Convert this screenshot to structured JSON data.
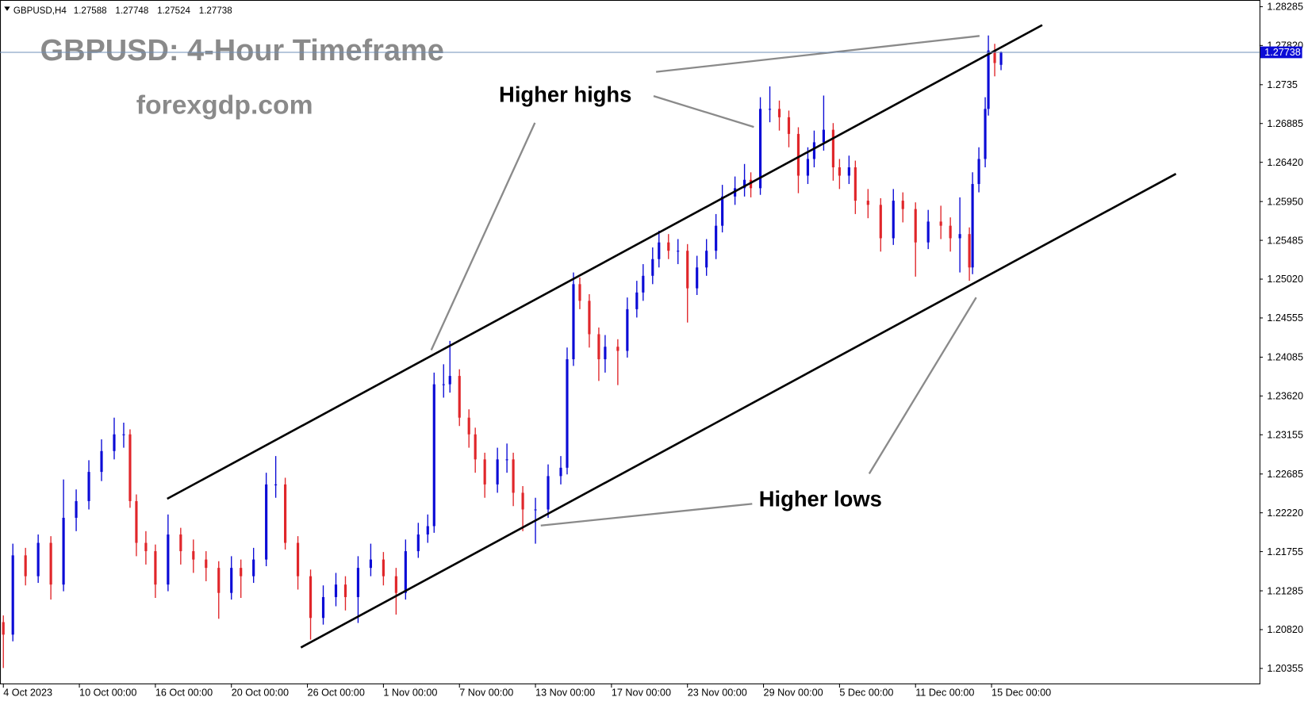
{
  "chart_data": {
    "type": "candlestick",
    "symbol": "GBPUSD,H4",
    "title": "GBPUSD: 4-Hour Timeframe",
    "subtitle": "forexgdp.com",
    "annotations": [
      "Higher highs",
      "Higher lows"
    ],
    "up_color": "#0b0bd6",
    "down_color": "#e0262a",
    "price_line_color": "#6f8fb8",
    "x": [
      0,
      3,
      7,
      11,
      15,
      19,
      23,
      27,
      31,
      35,
      38,
      40,
      42,
      45,
      48,
      52,
      56,
      60,
      64,
      68,
      72,
      75,
      79,
      83,
      86,
      89,
      93,
      97,
      101,
      105,
      108,
      112,
      116,
      120,
      124,
      127,
      131,
      134,
      136,
      139,
      141,
      144,
      147,
      149,
      152,
      156,
      159,
      161,
      164,
      168,
      172,
      176,
      178,
      180,
      182,
      185,
      188,
      190,
      194,
      197,
      200,
      202,
      205,
      207,
      210,
      213,
      216,
      219,
      222,
      225,
      227,
      231,
      234,
      236,
      239,
      242,
      245,
      248,
      251,
      254,
      256,
      259,
      262,
      264,
      267,
      269,
      273,
      277,
      281,
      284,
      288,
      292,
      296,
      299,
      302,
      305,
      306,
      308,
      310,
      311,
      313,
      315
    ],
    "open": [
      1.2091,
      1.2076,
      1.2171,
      1.2146,
      1.2186,
      1.2136,
      1.2216,
      1.2236,
      1.2271,
      1.2296,
      1.2316,
      1.2316,
      1.2236,
      1.2186,
      1.2176,
      1.2136,
      1.2196,
      1.2176,
      1.2166,
      1.2156,
      1.2126,
      1.2156,
      1.2146,
      1.2166,
      1.2256,
      1.2256,
      1.2186,
      1.2146,
      1.2096,
      1.2121,
      1.2136,
      1.2121,
      1.2156,
      1.2166,
      1.2146,
      1.2126,
      1.2176,
      1.2196,
      1.2206,
      1.2376,
      1.2376,
      1.2386,
      1.2336,
      1.2316,
      1.2286,
      1.2256,
      1.2286,
      1.2286,
      1.2246,
      1.2226,
      1.2226,
      1.2266,
      1.2276,
      1.2406,
      1.2496,
      1.2476,
      1.2436,
      1.2406,
      1.2421,
      1.2416,
      1.2466,
      1.2486,
      1.2506,
      1.2526,
      1.2546,
      1.2536,
      1.2536,
      1.2491,
      1.2516,
      1.2536,
      1.2566,
      1.2601,
      1.2611,
      1.2621,
      1.2611,
      1.2706,
      1.2706,
      1.2696,
      1.2676,
      1.2626,
      1.2646,
      1.2666,
      1.2681,
      1.2636,
      1.2626,
      1.2636,
      1.2596,
      1.2591,
      1.2551,
      1.2596,
      1.2586,
      1.2546,
      1.2571,
      1.2566,
      1.2551,
      1.2556,
      1.2516,
      1.2616,
      1.2646,
      1.2706,
      1.2776,
      1.27588
    ],
    "high": [
      1.2099,
      1.2185,
      1.218,
      1.2196,
      1.2194,
      1.2262,
      1.225,
      1.2285,
      1.231,
      1.2336,
      1.233,
      1.2322,
      1.2244,
      1.22,
      1.2184,
      1.222,
      1.2204,
      1.219,
      1.2176,
      1.2164,
      1.217,
      1.2166,
      1.218,
      1.227,
      1.229,
      1.2264,
      1.2194,
      1.2154,
      1.2135,
      1.215,
      1.2146,
      1.217,
      1.2185,
      1.2175,
      1.2156,
      1.219,
      1.221,
      1.222,
      1.239,
      1.24,
      1.2428,
      1.2394,
      1.2346,
      1.2324,
      1.2294,
      1.23,
      1.2305,
      1.2294,
      1.2254,
      1.224,
      1.228,
      1.229,
      1.242,
      1.251,
      1.2504,
      1.2484,
      1.2444,
      1.2435,
      1.243,
      1.248,
      1.25,
      1.252,
      1.254,
      1.256,
      1.2556,
      1.255,
      1.2544,
      1.253,
      1.255,
      1.258,
      1.2615,
      1.2625,
      1.264,
      1.263,
      1.272,
      1.2733,
      1.2716,
      1.2704,
      1.2684,
      1.266,
      1.268,
      1.2722,
      1.2689,
      1.2646,
      1.265,
      1.2644,
      1.261,
      1.2599,
      1.261,
      1.2606,
      1.2594,
      1.2585,
      1.259,
      1.2576,
      1.26,
      1.2564,
      1.263,
      1.266,
      1.272,
      1.2794,
      1.2784,
      1.27748
    ],
    "low": [
      1.2036,
      1.2068,
      1.2135,
      1.2138,
      1.2118,
      1.2128,
      1.22,
      1.2226,
      1.226,
      1.2286,
      1.23,
      1.2228,
      1.217,
      1.216,
      1.212,
      1.2128,
      1.216,
      1.215,
      1.214,
      1.2095,
      1.2118,
      1.212,
      1.2138,
      1.2158,
      1.224,
      1.2178,
      1.213,
      1.207,
      1.2088,
      1.211,
      1.2105,
      1.209,
      1.2146,
      1.2135,
      1.21,
      1.2118,
      1.2168,
      1.2186,
      1.2198,
      1.236,
      1.2366,
      1.2326,
      1.23,
      1.227,
      1.224,
      1.2246,
      1.227,
      1.223,
      1.22,
      1.2185,
      1.2216,
      1.2256,
      1.2268,
      1.2398,
      1.2466,
      1.242,
      1.238,
      1.239,
      1.2375,
      1.2408,
      1.2456,
      1.2476,
      1.2496,
      1.2516,
      1.2526,
      1.252,
      1.245,
      1.2483,
      1.2506,
      1.2526,
      1.2558,
      1.2591,
      1.2601,
      1.26,
      1.2603,
      1.269,
      1.268,
      1.266,
      1.2605,
      1.2616,
      1.2636,
      1.2656,
      1.262,
      1.261,
      1.2616,
      1.258,
      1.2575,
      1.2535,
      1.2543,
      1.257,
      1.2505,
      1.2538,
      1.255,
      1.2535,
      1.251,
      1.25,
      1.2508,
      1.2606,
      1.2636,
      1.2698,
      1.2745,
      1.27524
    ],
    "close": [
      1.2076,
      1.2171,
      1.2146,
      1.2186,
      1.2136,
      1.2216,
      1.2236,
      1.2271,
      1.2296,
      1.2316,
      1.2316,
      1.2236,
      1.2186,
      1.2176,
      1.2136,
      1.2196,
      1.2176,
      1.2166,
      1.2156,
      1.2126,
      1.2156,
      1.2146,
      1.2166,
      1.2256,
      1.2256,
      1.2186,
      1.2146,
      1.2096,
      1.2121,
      1.2136,
      1.2121,
      1.2156,
      1.2166,
      1.2146,
      1.2126,
      1.2176,
      1.2196,
      1.2206,
      1.2376,
      1.2376,
      1.2386,
      1.2336,
      1.2316,
      1.2286,
      1.2256,
      1.2286,
      1.2286,
      1.2246,
      1.2226,
      1.2226,
      1.2266,
      1.2276,
      1.2406,
      1.2496,
      1.2476,
      1.2436,
      1.2406,
      1.2421,
      1.2416,
      1.2466,
      1.2486,
      1.2506,
      1.2526,
      1.2546,
      1.2536,
      1.2536,
      1.2491,
      1.2516,
      1.2536,
      1.2566,
      1.2601,
      1.2611,
      1.2621,
      1.2611,
      1.2706,
      1.2706,
      1.2696,
      1.2676,
      1.2626,
      1.2646,
      1.2666,
      1.2681,
      1.2636,
      1.2626,
      1.2636,
      1.2596,
      1.2591,
      1.2551,
      1.2596,
      1.2586,
      1.2546,
      1.2571,
      1.2566,
      1.2551,
      1.2556,
      1.2516,
      1.2616,
      1.2646,
      1.2706,
      1.2776,
      1.2761,
      1.27738
    ],
    "xlim": [
      -1.05,
      396.6
    ],
    "xticks": [
      {
        "value": 0,
        "label": "4 Oct 2023"
      },
      {
        "value": 24,
        "label": "10 Oct 00:00"
      },
      {
        "value": 48,
        "label": "16 Oct 00:00"
      },
      {
        "value": 72,
        "label": "20 Oct 00:00"
      },
      {
        "value": 96,
        "label": "26 Oct 00:00"
      },
      {
        "value": 120,
        "label": "1 Nov 00:00"
      },
      {
        "value": 144,
        "label": "7 Nov 00:00"
      },
      {
        "value": 168,
        "label": "13 Nov 00:00"
      },
      {
        "value": 192,
        "label": "17 Nov 00:00"
      },
      {
        "value": 216,
        "label": "23 Nov 00:00"
      },
      {
        "value": 240,
        "label": "29 Nov 00:00"
      },
      {
        "value": 264,
        "label": "5 Dec 00:00"
      },
      {
        "value": 288,
        "label": "11 Dec 00:00"
      },
      {
        "value": 312,
        "label": "15 Dec 00:00"
      }
    ],
    "ylim": [
      1.20175,
      1.28365
    ],
    "yticks": [
      1.28285,
      {
        "value": 1.2782,
        "label": "1.27820"
      },
      1.2735,
      1.26885,
      {
        "value": 1.2642,
        "label": "1.26420"
      },
      {
        "value": 1.2595,
        "label": "1.25950"
      },
      1.25485,
      {
        "value": 1.2502,
        "label": "1.25020"
      },
      1.24555,
      1.24085,
      {
        "value": 1.2362,
        "label": "1.23620"
      },
      1.23155,
      1.22685,
      {
        "value": 1.2222,
        "label": "1.22220"
      },
      1.21755,
      1.21285,
      {
        "value": 1.2082,
        "label": "1.20820"
      },
      1.20355
    ]
  }
}
